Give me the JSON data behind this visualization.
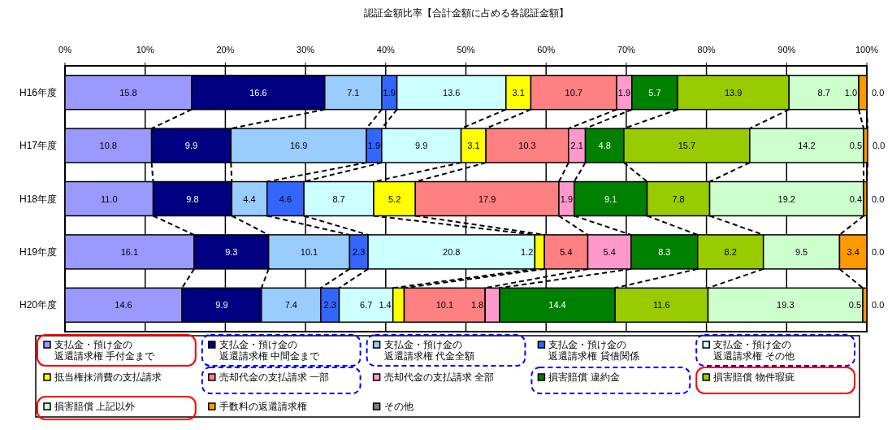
{
  "chart_data": {
    "type": "bar",
    "orientation": "horizontal",
    "stacked": true,
    "title": "認証金額比率【合計金額に占める各認証金額】",
    "categories": [
      "H16年度",
      "H17年度",
      "H18年度",
      "H19年度",
      "H20年度"
    ],
    "xlim": [
      0,
      100
    ],
    "xticks": [
      {
        "value": 0,
        "label": "0%"
      },
      {
        "value": 10,
        "label": "10%"
      },
      {
        "value": 20,
        "label": "20%"
      },
      {
        "value": 30,
        "label": "30%"
      },
      {
        "value": 40,
        "label": "40%"
      },
      {
        "value": 50,
        "label": "50%"
      },
      {
        "value": 60,
        "label": "60%"
      },
      {
        "value": 70,
        "label": "70%"
      },
      {
        "value": 80,
        "label": "80%"
      },
      {
        "value": 90,
        "label": "90%"
      },
      {
        "value": 100,
        "label": "100%"
      }
    ],
    "grid": "x",
    "legend": "bottom",
    "series": [
      {
        "name": "支払金・預け金の返還請求権 手付金まで",
        "color": "#9999ff",
        "values": [
          15.8,
          10.8,
          11.0,
          16.1,
          14.6
        ],
        "value_labels": [
          "15.8",
          "10.8",
          "11.0",
          "16.1",
          "14.6"
        ]
      },
      {
        "name": "支払金・預け金の返還請求権 中間金まで",
        "color": "#000080",
        "values": [
          16.6,
          9.9,
          9.8,
          9.3,
          9.9
        ],
        "value_labels": [
          "16.6",
          "9.9",
          "9.8",
          "9.3",
          "9.9"
        ]
      },
      {
        "name": "支払金・預け金の返還請求権 代金全額",
        "color": "#99ccff",
        "values": [
          7.1,
          16.9,
          4.4,
          10.1,
          7.4
        ],
        "value_labels": [
          "7.1",
          "16.9",
          "4.4",
          "10.1",
          "7.4"
        ]
      },
      {
        "name": "支払金・預け金の返還請求権 貸借関係",
        "color": "#3366ff",
        "values": [
          1.9,
          1.9,
          4.6,
          2.3,
          2.3
        ],
        "value_labels": [
          "1.9",
          "1.9",
          "4.6",
          "2.3",
          "2.3"
        ]
      },
      {
        "name": "支払金・預け金の返還請求権 その他",
        "color": "#ccffff",
        "values": [
          13.6,
          9.9,
          8.7,
          20.8,
          6.7
        ],
        "value_labels": [
          "13.6",
          "9.9",
          "8.7",
          "20.8",
          "6.7"
        ]
      },
      {
        "name": "抵当権抹消費の支払請求",
        "color": "#ffff00",
        "values": [
          3.1,
          3.1,
          5.2,
          1.2,
          1.4
        ],
        "value_labels": [
          "3.1",
          "3.1",
          "5.2",
          "1.2",
          "1.4"
        ]
      },
      {
        "name": "売却代金の支払請求 一部",
        "color": "#ff8080",
        "values": [
          10.7,
          10.3,
          17.9,
          5.4,
          10.1
        ],
        "value_labels": [
          "10.7",
          "10.3",
          "17.9",
          "5.4",
          "10.1"
        ]
      },
      {
        "name": "売却代金の支払請求 全部",
        "color": "#ff99cc",
        "values": [
          1.9,
          2.1,
          1.9,
          5.4,
          1.8
        ],
        "value_labels": [
          "1.9",
          "2.1",
          "1.9",
          "5.4",
          "1.8"
        ]
      },
      {
        "name": "損害賠償 違約金",
        "color": "#008000",
        "values": [
          5.7,
          4.8,
          9.1,
          8.3,
          14.4
        ],
        "value_labels": [
          "5.7",
          "4.8",
          "9.1",
          "8.3",
          "14.4"
        ]
      },
      {
        "name": "損害賠償 物件瑕疵",
        "color": "#99cc00",
        "values": [
          13.9,
          15.7,
          7.8,
          8.2,
          11.6
        ],
        "value_labels": [
          "13.9",
          "15.7",
          "7.8",
          "8.2",
          "11.6"
        ]
      },
      {
        "name": "損害賠償 上記以外",
        "color": "#ccffcc",
        "values": [
          8.7,
          14.2,
          19.2,
          9.5,
          19.3
        ],
        "value_labels": [
          "8.7",
          "14.2",
          "19.2",
          "9.5",
          "19.3"
        ]
      },
      {
        "name": "手数料の返還請求権",
        "color": "#ff9900",
        "values": [
          1.0,
          0.5,
          0.4,
          3.4,
          0.5
        ],
        "value_labels": [
          "1.0",
          "0.5",
          "0.4",
          "3.4",
          "0.5"
        ]
      },
      {
        "name": "その他",
        "color": "#808080",
        "values": [
          0,
          0,
          0,
          0,
          0
        ],
        "value_labels": [
          "0.0",
          "0.0",
          "0.0",
          "0.0",
          "0.0"
        ]
      }
    ]
  }
}
